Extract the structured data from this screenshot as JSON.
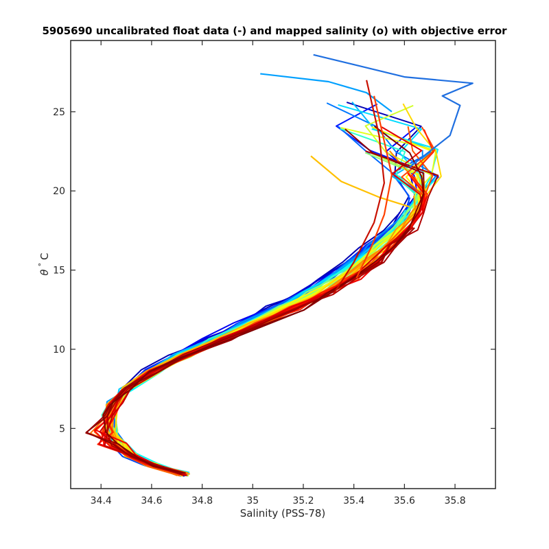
{
  "chart_data": {
    "type": "line",
    "title": "5905690 uncalibrated float data (-) and mapped salinity (o) with objective error",
    "xlabel": "Salinity (PSS-78)",
    "ylabel_parts": {
      "theta": "θ",
      "degree": "°",
      "unit": "C"
    },
    "xlim": [
      34.28,
      35.96
    ],
    "ylim": [
      1.2,
      29.5
    ],
    "x_ticks": [
      34.4,
      34.6,
      34.8,
      35.0,
      35.2,
      35.4,
      35.6,
      35.8
    ],
    "x_tick_labels": [
      "34.4",
      "34.6",
      "34.8",
      "35",
      "35.2",
      "35.4",
      "35.6",
      "35.8"
    ],
    "y_ticks": [
      5,
      10,
      15,
      20,
      25
    ],
    "y_tick_labels": [
      "5",
      "10",
      "15",
      "20",
      "25"
    ],
    "grid": false,
    "legend": "none",
    "colormap": "jet",
    "n_profiles": 60,
    "base_profile": {
      "salinity": [
        34.73,
        34.6,
        34.52,
        34.47,
        34.44,
        34.43,
        34.45,
        34.5,
        34.6,
        34.72,
        34.86,
        34.99,
        35.12,
        35.24,
        35.34,
        35.43,
        35.5,
        35.58,
        35.63,
        35.66,
        35.64,
        35.59,
        35.52,
        35.47,
        35.45
      ],
      "theta": [
        2.1,
        2.7,
        3.3,
        4.0,
        4.8,
        5.8,
        6.6,
        7.5,
        8.6,
        9.6,
        10.6,
        11.6,
        12.6,
        13.5,
        14.5,
        15.5,
        16.5,
        17.6,
        18.7,
        19.7,
        21.0,
        22.5,
        24.0,
        25.5,
        27.0
      ]
    },
    "highlight_profiles": [
      {
        "name": "",
        "color": "#1f6fe0",
        "salinity": [
          35.62,
          35.7,
          35.78,
          35.82,
          35.75,
          35.87,
          35.6,
          35.24
        ],
        "theta": [
          21.5,
          22.5,
          23.5,
          25.4,
          26.0,
          26.8,
          27.2,
          28.6
        ]
      },
      {
        "name": "",
        "color": "#00a0ff",
        "salinity": [
          35.55,
          35.45,
          35.3,
          35.03
        ],
        "theta": [
          25.0,
          26.2,
          26.9,
          27.4
        ]
      },
      {
        "name": "",
        "color": "#ffc000",
        "salinity": [
          35.62,
          35.5,
          35.35,
          35.23
        ],
        "theta": [
          19.0,
          19.6,
          20.6,
          22.2
        ]
      },
      {
        "name": "",
        "color": "#ff4000",
        "salinity": [
          35.41,
          35.47,
          35.52,
          35.55,
          35.48
        ],
        "theta": [
          14.5,
          16.5,
          18.5,
          21.0,
          26.0
        ]
      },
      {
        "name": "",
        "color": "#c81000",
        "salinity": [
          35.32,
          35.4,
          35.48,
          35.52,
          35.5,
          35.45
        ],
        "theta": [
          13.5,
          15.5,
          18.0,
          20.5,
          23.5,
          27.0
        ]
      }
    ]
  }
}
